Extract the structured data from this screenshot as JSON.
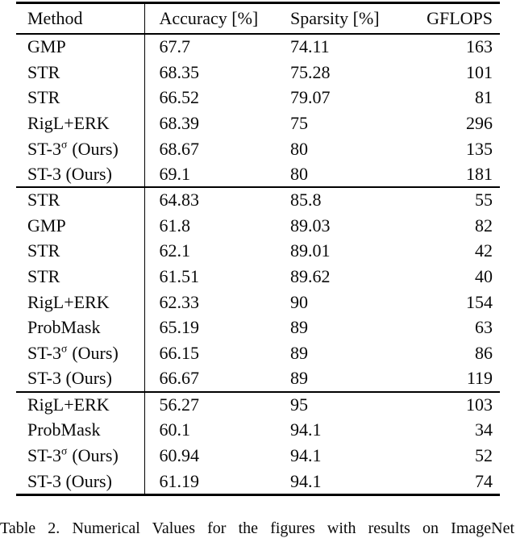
{
  "table": {
    "columns": [
      {
        "label": "Method"
      },
      {
        "label": "Accuracy [%]"
      },
      {
        "label": "Sparsity [%]"
      },
      {
        "label": "GFLOPS"
      }
    ],
    "sections": [
      {
        "rows": [
          {
            "method": "GMP",
            "accuracy": "67.7",
            "sparsity": "74.11",
            "gflops": "163"
          },
          {
            "method": "STR",
            "accuracy": "68.35",
            "sparsity": "75.28",
            "gflops": "101"
          },
          {
            "method": "STR",
            "accuracy": "66.52",
            "sparsity": "79.07",
            "gflops": "81"
          },
          {
            "method": "RigL+ERK",
            "accuracy": "68.39",
            "sparsity": "75",
            "gflops": "296"
          },
          {
            "method": "ST-3^σ (Ours)",
            "accuracy": "68.67",
            "sparsity": "80",
            "gflops": "135"
          },
          {
            "method": "ST-3 (Ours)",
            "accuracy": "69.1",
            "sparsity": "80",
            "gflops": "181"
          }
        ]
      },
      {
        "rows": [
          {
            "method": "STR",
            "accuracy": "64.83",
            "sparsity": "85.8",
            "gflops": "55"
          },
          {
            "method": "GMP",
            "accuracy": "61.8",
            "sparsity": "89.03",
            "gflops": "82"
          },
          {
            "method": "STR",
            "accuracy": "62.1",
            "sparsity": "89.01",
            "gflops": "42"
          },
          {
            "method": "STR",
            "accuracy": "61.51",
            "sparsity": "89.62",
            "gflops": "40"
          },
          {
            "method": "RigL+ERK",
            "accuracy": "62.33",
            "sparsity": "90",
            "gflops": "154"
          },
          {
            "method": "ProbMask",
            "accuracy": "65.19",
            "sparsity": "89",
            "gflops": "63"
          },
          {
            "method": "ST-3^σ (Ours)",
            "accuracy": "66.15",
            "sparsity": "89",
            "gflops": "86"
          },
          {
            "method": "ST-3 (Ours)",
            "accuracy": "66.67",
            "sparsity": "89",
            "gflops": "119"
          }
        ]
      },
      {
        "rows": [
          {
            "method": "RigL+ERK",
            "accuracy": "56.27",
            "sparsity": "95",
            "gflops": "103"
          },
          {
            "method": "ProbMask",
            "accuracy": "60.1",
            "sparsity": "94.1",
            "gflops": "34"
          },
          {
            "method": "ST-3^σ (Ours)",
            "accuracy": "60.94",
            "sparsity": "94.1",
            "gflops": "52"
          },
          {
            "method": "ST-3 (Ours)",
            "accuracy": "61.19",
            "sparsity": "94.1",
            "gflops": "74"
          }
        ]
      }
    ]
  },
  "caption": {
    "text": "Table 2. Numerical Values for the figures with results on ImageNet"
  }
}
